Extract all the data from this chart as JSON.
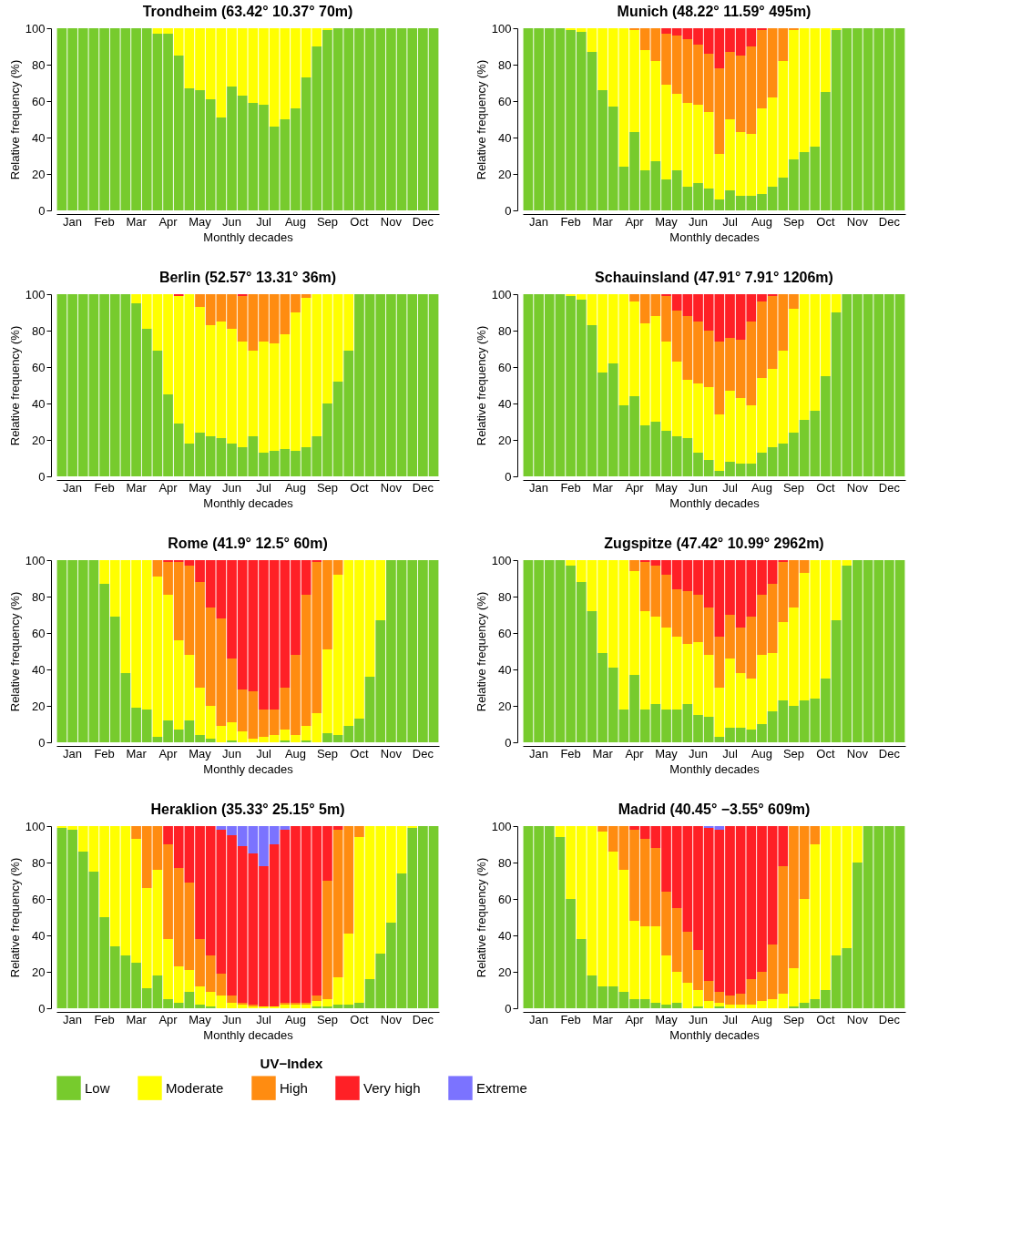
{
  "chart_data": [
    {
      "type": "bar",
      "stacked": true,
      "title": "Trondheim (63.42° 10.37° 70m)",
      "xlabel": "Monthly decades",
      "ylabel": "Relative frequency (%)",
      "ylim": [
        0,
        100
      ],
      "yticks": [
        0,
        20,
        40,
        60,
        80,
        100
      ],
      "legend": "bottom",
      "legend_title": "UV−Index",
      "categories": [
        null,
        "Jan",
        null,
        null,
        "Feb",
        null,
        null,
        "Mar",
        null,
        null,
        "Apr",
        null,
        null,
        "May",
        null,
        null,
        "Jun",
        null,
        null,
        "Jul",
        null,
        null,
        "Aug",
        null,
        null,
        "Sep",
        null,
        null,
        "Oct",
        null,
        null,
        "Nov",
        null,
        null,
        "Dec",
        null
      ],
      "series": [
        {
          "name": "Low",
          "color": "#77cb2d",
          "values": [
            100,
            100,
            100,
            100,
            100,
            100,
            100,
            100,
            100,
            97,
            97,
            85,
            67,
            66,
            61,
            51,
            68,
            63,
            59,
            58,
            46,
            50,
            56,
            73,
            90,
            99,
            100,
            100,
            100,
            100,
            100,
            100,
            100,
            100,
            100,
            100
          ]
        },
        {
          "name": "Moderate",
          "color": "#ffff00",
          "values": [
            0,
            0,
            0,
            0,
            0,
            0,
            0,
            0,
            0,
            3,
            3,
            15,
            33,
            34,
            39,
            49,
            32,
            37,
            41,
            42,
            54,
            50,
            44,
            27,
            10,
            1,
            0,
            0,
            0,
            0,
            0,
            0,
            0,
            0,
            0,
            0
          ]
        },
        {
          "name": "High",
          "color": "#ff8c11",
          "values": [
            0,
            0,
            0,
            0,
            0,
            0,
            0,
            0,
            0,
            0,
            0,
            0,
            0,
            0,
            0,
            0,
            0,
            0,
            0,
            0,
            0,
            0,
            0,
            0,
            0,
            0,
            0,
            0,
            0,
            0,
            0,
            0,
            0,
            0,
            0,
            0
          ]
        },
        {
          "name": "Very high",
          "color": "#ff2026",
          "values": [
            0,
            0,
            0,
            0,
            0,
            0,
            0,
            0,
            0,
            0,
            0,
            0,
            0,
            0,
            0,
            0,
            0,
            0,
            0,
            0,
            0,
            0,
            0,
            0,
            0,
            0,
            0,
            0,
            0,
            0,
            0,
            0,
            0,
            0,
            0,
            0
          ]
        },
        {
          "name": "Extreme",
          "color": "#7b73ff",
          "values": [
            0,
            0,
            0,
            0,
            0,
            0,
            0,
            0,
            0,
            0,
            0,
            0,
            0,
            0,
            0,
            0,
            0,
            0,
            0,
            0,
            0,
            0,
            0,
            0,
            0,
            0,
            0,
            0,
            0,
            0,
            0,
            0,
            0,
            0,
            0,
            0
          ]
        }
      ]
    },
    {
      "type": "bar",
      "stacked": true,
      "title": "Munich (48.22° 11.59° 495m)",
      "xlabel": "Monthly decades",
      "ylabel": "Relative frequency (%)",
      "ylim": [
        0,
        100
      ],
      "yticks": [
        0,
        20,
        40,
        60,
        80,
        100
      ],
      "categories": [
        null,
        "Jan",
        null,
        null,
        "Feb",
        null,
        null,
        "Mar",
        null,
        null,
        "Apr",
        null,
        null,
        "May",
        null,
        null,
        "Jun",
        null,
        null,
        "Jul",
        null,
        null,
        "Aug",
        null,
        null,
        "Sep",
        null,
        null,
        "Oct",
        null,
        null,
        "Nov",
        null,
        null,
        "Dec",
        null
      ],
      "series": [
        {
          "color": "#77cb2d",
          "values": [
            100,
            100,
            100,
            100,
            99,
            98,
            87,
            66,
            57,
            24,
            43,
            22,
            27,
            17,
            22,
            13,
            15,
            12,
            6,
            11,
            8,
            8,
            9,
            13,
            18,
            28,
            32,
            35,
            65,
            99,
            100,
            100,
            100,
            100,
            100,
            100
          ]
        },
        {
          "color": "#ffff00",
          "values": [
            0,
            0,
            0,
            0,
            1,
            2,
            13,
            34,
            43,
            76,
            56,
            66,
            55,
            52,
            42,
            46,
            43,
            42,
            25,
            39,
            35,
            34,
            47,
            49,
            64,
            71,
            68,
            65,
            35,
            1,
            0,
            0,
            0,
            0,
            0,
            0
          ]
        },
        {
          "color": "#ff8c11",
          "values": [
            0,
            0,
            0,
            0,
            0,
            0,
            0,
            0,
            0,
            0,
            1,
            12,
            18,
            28,
            32,
            35,
            33,
            32,
            47,
            37,
            42,
            48,
            43,
            38,
            18,
            1,
            0,
            0,
            0,
            0,
            0,
            0,
            0,
            0,
            0,
            0
          ]
        },
        {
          "color": "#ff2026",
          "values": [
            0,
            0,
            0,
            0,
            0,
            0,
            0,
            0,
            0,
            0,
            0,
            0,
            0,
            3,
            4,
            6,
            9,
            14,
            22,
            13,
            15,
            10,
            1,
            0,
            0,
            0,
            0,
            0,
            0,
            0,
            0,
            0,
            0,
            0,
            0,
            0
          ]
        },
        {
          "color": "#7b73ff",
          "values": [
            0,
            0,
            0,
            0,
            0,
            0,
            0,
            0,
            0,
            0,
            0,
            0,
            0,
            0,
            0,
            0,
            0,
            0,
            0,
            0,
            0,
            0,
            0,
            0,
            0,
            0,
            0,
            0,
            0,
            0,
            0,
            0,
            0,
            0,
            0,
            0
          ]
        }
      ]
    },
    {
      "type": "bar",
      "stacked": true,
      "title": "Berlin (52.57° 13.31° 36m)",
      "xlabel": "Monthly decades",
      "ylabel": "Relative frequency (%)",
      "ylim": [
        0,
        100
      ],
      "yticks": [
        0,
        20,
        40,
        60,
        80,
        100
      ],
      "categories": [
        null,
        "Jan",
        null,
        null,
        "Feb",
        null,
        null,
        "Mar",
        null,
        null,
        "Apr",
        null,
        null,
        "May",
        null,
        null,
        "Jun",
        null,
        null,
        "Jul",
        null,
        null,
        "Aug",
        null,
        null,
        "Sep",
        null,
        null,
        "Oct",
        null,
        null,
        "Nov",
        null,
        null,
        "Dec",
        null
      ],
      "series": [
        {
          "color": "#77cb2d",
          "values": [
            100,
            100,
            100,
            100,
            100,
            100,
            100,
            95,
            81,
            69,
            45,
            29,
            18,
            24,
            22,
            21,
            18,
            16,
            22,
            13,
            14,
            15,
            14,
            16,
            22,
            40,
            52,
            69,
            100,
            100,
            100,
            100,
            100,
            100,
            100,
            100
          ]
        },
        {
          "color": "#ffff00",
          "values": [
            0,
            0,
            0,
            0,
            0,
            0,
            0,
            5,
            19,
            31,
            55,
            70,
            82,
            69,
            61,
            64,
            63,
            58,
            47,
            61,
            59,
            63,
            76,
            82,
            78,
            60,
            48,
            31,
            0,
            0,
            0,
            0,
            0,
            0,
            0,
            0
          ]
        },
        {
          "color": "#ff8c11",
          "values": [
            0,
            0,
            0,
            0,
            0,
            0,
            0,
            0,
            0,
            0,
            0,
            0,
            0,
            7,
            17,
            15,
            19,
            25,
            31,
            26,
            27,
            22,
            10,
            2,
            0,
            0,
            0,
            0,
            0,
            0,
            0,
            0,
            0,
            0,
            0,
            0
          ]
        },
        {
          "color": "#ff2026",
          "values": [
            0,
            0,
            0,
            0,
            0,
            0,
            0,
            0,
            0,
            0,
            0,
            1,
            0,
            0,
            0,
            0,
            0,
            1,
            0,
            0,
            0,
            0,
            0,
            0,
            0,
            0,
            0,
            0,
            0,
            0,
            0,
            0,
            0,
            0,
            0,
            0
          ]
        },
        {
          "color": "#7b73ff",
          "values": [
            0,
            0,
            0,
            0,
            0,
            0,
            0,
            0,
            0,
            0,
            0,
            0,
            0,
            0,
            0,
            0,
            0,
            0,
            0,
            0,
            0,
            0,
            0,
            0,
            0,
            0,
            0,
            0,
            0,
            0,
            0,
            0,
            0,
            0,
            0,
            0
          ]
        }
      ]
    },
    {
      "type": "bar",
      "stacked": true,
      "title": "Schauinsland (47.91° 7.91° 1206m)",
      "xlabel": "Monthly decades",
      "ylabel": "Relative frequency (%)",
      "ylim": [
        0,
        100
      ],
      "yticks": [
        0,
        20,
        40,
        60,
        80,
        100
      ],
      "categories": [
        null,
        "Jan",
        null,
        null,
        "Feb",
        null,
        null,
        "Mar",
        null,
        null,
        "Apr",
        null,
        null,
        "May",
        null,
        null,
        "Jun",
        null,
        null,
        "Jul",
        null,
        null,
        "Aug",
        null,
        null,
        "Sep",
        null,
        null,
        "Oct",
        null,
        null,
        "Nov",
        null,
        null,
        "Dec",
        null
      ],
      "series": [
        {
          "color": "#77cb2d",
          "values": [
            100,
            100,
            100,
            100,
            99,
            97,
            83,
            57,
            62,
            39,
            44,
            28,
            30,
            25,
            22,
            21,
            13,
            9,
            3,
            8,
            7,
            7,
            13,
            16,
            18,
            24,
            31,
            36,
            55,
            90,
            100,
            100,
            100,
            100,
            100,
            100
          ]
        },
        {
          "color": "#ffff00",
          "values": [
            0,
            0,
            0,
            0,
            1,
            3,
            17,
            43,
            38,
            61,
            52,
            56,
            58,
            49,
            41,
            32,
            38,
            40,
            31,
            39,
            36,
            32,
            41,
            43,
            51,
            68,
            69,
            64,
            45,
            10,
            0,
            0,
            0,
            0,
            0,
            0
          ]
        },
        {
          "color": "#ff8c11",
          "values": [
            0,
            0,
            0,
            0,
            0,
            0,
            0,
            0,
            0,
            0,
            4,
            16,
            12,
            25,
            28,
            35,
            34,
            31,
            40,
            29,
            32,
            46,
            42,
            40,
            31,
            8,
            0,
            0,
            0,
            0,
            0,
            0,
            0,
            0,
            0,
            0
          ]
        },
        {
          "color": "#ff2026",
          "values": [
            0,
            0,
            0,
            0,
            0,
            0,
            0,
            0,
            0,
            0,
            0,
            0,
            0,
            1,
            9,
            12,
            15,
            20,
            26,
            24,
            25,
            15,
            4,
            1,
            0,
            0,
            0,
            0,
            0,
            0,
            0,
            0,
            0,
            0,
            0,
            0
          ]
        },
        {
          "color": "#7b73ff",
          "values": [
            0,
            0,
            0,
            0,
            0,
            0,
            0,
            0,
            0,
            0,
            0,
            0,
            0,
            0,
            0,
            0,
            0,
            0,
            0,
            0,
            0,
            0,
            0,
            0,
            0,
            0,
            0,
            0,
            0,
            0,
            0,
            0,
            0,
            0,
            0,
            0
          ]
        }
      ]
    },
    {
      "type": "bar",
      "stacked": true,
      "title": "Rome (41.9° 12.5° 60m)",
      "xlabel": "Monthly decades",
      "ylabel": "Relative frequency (%)",
      "ylim": [
        0,
        100
      ],
      "yticks": [
        0,
        20,
        40,
        60,
        80,
        100
      ],
      "categories": [
        null,
        "Jan",
        null,
        null,
        "Feb",
        null,
        null,
        "Mar",
        null,
        null,
        "Apr",
        null,
        null,
        "May",
        null,
        null,
        "Jun",
        null,
        null,
        "Jul",
        null,
        null,
        "Aug",
        null,
        null,
        "Sep",
        null,
        null,
        "Oct",
        null,
        null,
        "Nov",
        null,
        null,
        "Dec",
        null
      ],
      "series": [
        {
          "color": "#77cb2d",
          "values": [
            100,
            100,
            100,
            100,
            87,
            69,
            38,
            19,
            18,
            3,
            12,
            7,
            12,
            4,
            2,
            0,
            1,
            0,
            0,
            0,
            0,
            1,
            0,
            1,
            0,
            5,
            4,
            9,
            13,
            36,
            67,
            100,
            100,
            100,
            100,
            100
          ]
        },
        {
          "color": "#ffff00",
          "values": [
            0,
            0,
            0,
            0,
            13,
            31,
            62,
            81,
            82,
            88,
            69,
            49,
            36,
            26,
            18,
            9,
            10,
            6,
            2,
            3,
            4,
            6,
            4,
            8,
            16,
            46,
            88,
            91,
            87,
            64,
            33,
            0,
            0,
            0,
            0,
            0
          ]
        },
        {
          "color": "#ff8c11",
          "values": [
            0,
            0,
            0,
            0,
            0,
            0,
            0,
            0,
            0,
            9,
            18,
            43,
            49,
            58,
            54,
            59,
            35,
            23,
            26,
            15,
            14,
            23,
            44,
            72,
            83,
            49,
            8,
            0,
            0,
            0,
            0,
            0,
            0,
            0,
            0,
            0
          ]
        },
        {
          "color": "#ff2026",
          "values": [
            0,
            0,
            0,
            0,
            0,
            0,
            0,
            0,
            0,
            0,
            1,
            1,
            3,
            12,
            26,
            32,
            54,
            71,
            72,
            82,
            82,
            70,
            52,
            19,
            1,
            0,
            0,
            0,
            0,
            0,
            0,
            0,
            0,
            0,
            0,
            0
          ]
        },
        {
          "color": "#7b73ff",
          "values": [
            0,
            0,
            0,
            0,
            0,
            0,
            0,
            0,
            0,
            0,
            0,
            0,
            0,
            0,
            0,
            0,
            0,
            0,
            0,
            0,
            0,
            0,
            0,
            0,
            0,
            0,
            0,
            0,
            0,
            0,
            0,
            0,
            0,
            0,
            0,
            0
          ]
        }
      ]
    },
    {
      "type": "bar",
      "stacked": true,
      "title": "Zugspitze (47.42° 10.99° 2962m)",
      "xlabel": "Monthly decades",
      "ylabel": "Relative frequency (%)",
      "ylim": [
        0,
        100
      ],
      "yticks": [
        0,
        20,
        40,
        60,
        80,
        100
      ],
      "categories": [
        null,
        "Jan",
        null,
        null,
        "Feb",
        null,
        null,
        "Mar",
        null,
        null,
        "Apr",
        null,
        null,
        "May",
        null,
        null,
        "Jun",
        null,
        null,
        "Jul",
        null,
        null,
        "Aug",
        null,
        null,
        "Sep",
        null,
        null,
        "Oct",
        null,
        null,
        "Nov",
        null,
        null,
        "Dec",
        null
      ],
      "series": [
        {
          "color": "#77cb2d",
          "values": [
            100,
            100,
            100,
            100,
            97,
            88,
            72,
            49,
            41,
            18,
            37,
            18,
            21,
            18,
            18,
            21,
            15,
            14,
            3,
            8,
            8,
            7,
            10,
            17,
            23,
            20,
            23,
            24,
            35,
            67,
            97,
            100,
            100,
            100,
            100,
            100
          ]
        },
        {
          "color": "#ffff00",
          "values": [
            0,
            0,
            0,
            0,
            3,
            12,
            28,
            51,
            59,
            82,
            57,
            54,
            48,
            45,
            40,
            33,
            40,
            34,
            27,
            38,
            30,
            28,
            38,
            32,
            43,
            54,
            70,
            76,
            65,
            33,
            3,
            0,
            0,
            0,
            0,
            0
          ]
        },
        {
          "color": "#ff8c11",
          "values": [
            0,
            0,
            0,
            0,
            0,
            0,
            0,
            0,
            0,
            0,
            6,
            27,
            28,
            29,
            26,
            29,
            26,
            26,
            28,
            24,
            25,
            34,
            33,
            38,
            33,
            26,
            7,
            0,
            0,
            0,
            0,
            0,
            0,
            0,
            0,
            0
          ]
        },
        {
          "color": "#ff2026",
          "values": [
            0,
            0,
            0,
            0,
            0,
            0,
            0,
            0,
            0,
            0,
            0,
            1,
            3,
            8,
            16,
            17,
            19,
            26,
            42,
            30,
            37,
            31,
            19,
            13,
            1,
            0,
            0,
            0,
            0,
            0,
            0,
            0,
            0,
            0,
            0,
            0
          ]
        },
        {
          "color": "#7b73ff",
          "values": [
            0,
            0,
            0,
            0,
            0,
            0,
            0,
            0,
            0,
            0,
            0,
            0,
            0,
            0,
            0,
            0,
            0,
            0,
            0,
            0,
            0,
            0,
            0,
            0,
            0,
            0,
            0,
            0,
            0,
            0,
            0,
            0,
            0,
            0,
            0,
            0
          ]
        }
      ]
    },
    {
      "type": "bar",
      "stacked": true,
      "title": "Heraklion (35.33° 25.15° 5m)",
      "xlabel": "Monthly decades",
      "ylabel": "Relative frequency (%)",
      "ylim": [
        0,
        100
      ],
      "yticks": [
        0,
        20,
        40,
        60,
        80,
        100
      ],
      "categories": [
        null,
        "Jan",
        null,
        null,
        "Feb",
        null,
        null,
        "Mar",
        null,
        null,
        "Apr",
        null,
        null,
        "May",
        null,
        null,
        "Jun",
        null,
        null,
        "Jul",
        null,
        null,
        "Aug",
        null,
        null,
        "Sep",
        null,
        null,
        "Oct",
        null,
        null,
        "Nov",
        null,
        null,
        "Dec",
        null
      ],
      "series": [
        {
          "color": "#77cb2d",
          "values": [
            99,
            98,
            86,
            75,
            50,
            34,
            29,
            25,
            11,
            18,
            5,
            3,
            9,
            2,
            1,
            0,
            0,
            0,
            0,
            0,
            0,
            0,
            0,
            0,
            1,
            1,
            2,
            2,
            3,
            16,
            30,
            47,
            74,
            99,
            100,
            100
          ]
        },
        {
          "color": "#ffff00",
          "values": [
            1,
            2,
            14,
            25,
            50,
            66,
            71,
            68,
            55,
            58,
            33,
            20,
            12,
            10,
            8,
            7,
            3,
            2,
            1,
            1,
            1,
            2,
            2,
            2,
            3,
            4,
            15,
            39,
            91,
            84,
            70,
            53,
            26,
            1,
            0,
            0
          ]
        },
        {
          "color": "#ff8c11",
          "values": [
            0,
            0,
            0,
            0,
            0,
            0,
            0,
            7,
            34,
            24,
            52,
            54,
            48,
            26,
            20,
            12,
            4,
            1,
            1,
            0,
            0,
            1,
            1,
            1,
            3,
            65,
            81,
            59,
            6,
            0,
            0,
            0,
            0,
            0,
            0,
            0
          ]
        },
        {
          "color": "#ff2026",
          "values": [
            0,
            0,
            0,
            0,
            0,
            0,
            0,
            0,
            0,
            0,
            10,
            23,
            31,
            62,
            71,
            79,
            88,
            86,
            83,
            77,
            89,
            95,
            97,
            97,
            93,
            30,
            2,
            0,
            0,
            0,
            0,
            0,
            0,
            0,
            0,
            0
          ]
        },
        {
          "color": "#7b73ff",
          "values": [
            0,
            0,
            0,
            0,
            0,
            0,
            0,
            0,
            0,
            0,
            0,
            0,
            0,
            0,
            0,
            2,
            5,
            11,
            15,
            22,
            10,
            2,
            0,
            0,
            0,
            0,
            0,
            0,
            0,
            0,
            0,
            0,
            0,
            0,
            0,
            0
          ]
        }
      ]
    },
    {
      "type": "bar",
      "stacked": true,
      "title": "Madrid (40.45° −3.55° 609m)",
      "xlabel": "Monthly decades",
      "ylabel": "Relative frequency (%)",
      "ylim": [
        0,
        100
      ],
      "yticks": [
        0,
        20,
        40,
        60,
        80,
        100
      ],
      "categories": [
        null,
        "Jan",
        null,
        null,
        "Feb",
        null,
        null,
        "Mar",
        null,
        null,
        "Apr",
        null,
        null,
        "May",
        null,
        null,
        "Jun",
        null,
        null,
        "Jul",
        null,
        null,
        "Aug",
        null,
        null,
        "Sep",
        null,
        null,
        "Oct",
        null,
        null,
        "Nov",
        null,
        null,
        "Dec",
        null
      ],
      "series": [
        {
          "color": "#77cb2d",
          "values": [
            100,
            100,
            100,
            94,
            60,
            38,
            18,
            12,
            12,
            9,
            5,
            5,
            3,
            2,
            3,
            0,
            1,
            0,
            1,
            0,
            0,
            0,
            0,
            0,
            0,
            1,
            3,
            5,
            10,
            29,
            33,
            80,
            100,
            100,
            100,
            100
          ]
        },
        {
          "color": "#ffff00",
          "values": [
            0,
            0,
            0,
            6,
            40,
            62,
            82,
            85,
            74,
            67,
            43,
            40,
            42,
            27,
            17,
            14,
            9,
            4,
            2,
            2,
            2,
            2,
            4,
            5,
            8,
            21,
            57,
            85,
            90,
            71,
            67,
            20,
            0,
            0,
            0,
            0
          ]
        },
        {
          "color": "#ff8c11",
          "values": [
            0,
            0,
            0,
            0,
            0,
            0,
            0,
            3,
            14,
            24,
            50,
            48,
            43,
            35,
            35,
            28,
            22,
            11,
            6,
            5,
            6,
            14,
            16,
            30,
            70,
            78,
            40,
            10,
            0,
            0,
            0,
            0,
            0,
            0,
            0,
            0
          ]
        },
        {
          "color": "#ff2026",
          "values": [
            0,
            0,
            0,
            0,
            0,
            0,
            0,
            0,
            0,
            0,
            2,
            7,
            12,
            36,
            45,
            58,
            68,
            84,
            89,
            93,
            92,
            84,
            80,
            65,
            22,
            0,
            0,
            0,
            0,
            0,
            0,
            0,
            0,
            0,
            0,
            0
          ]
        },
        {
          "color": "#7b73ff",
          "values": [
            0,
            0,
            0,
            0,
            0,
            0,
            0,
            0,
            0,
            0,
            0,
            0,
            0,
            0,
            0,
            0,
            0,
            1,
            2,
            0,
            0,
            0,
            0,
            0,
            0,
            0,
            0,
            0,
            0,
            0,
            0,
            0,
            0,
            0,
            0,
            0
          ]
        }
      ]
    }
  ]
}
